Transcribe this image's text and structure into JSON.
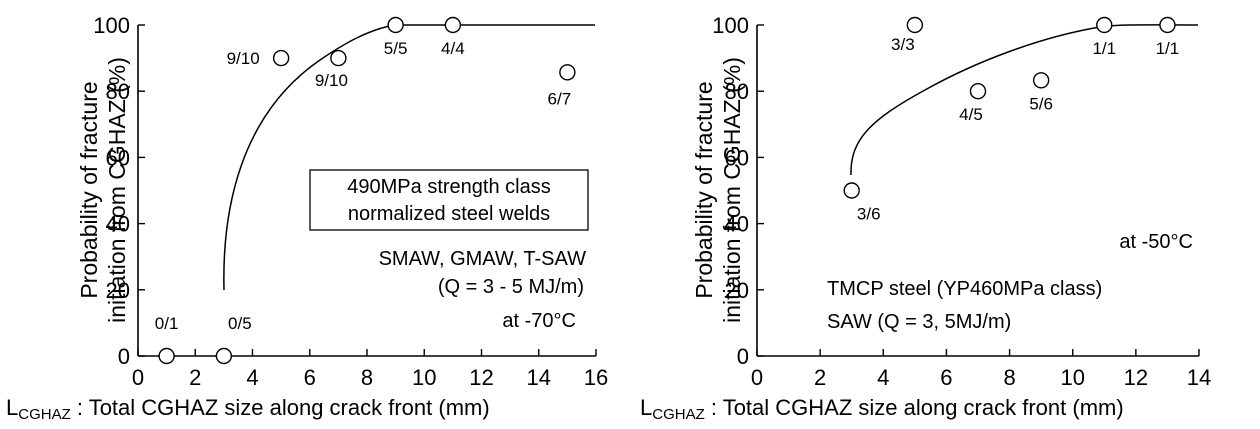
{
  "chart_data": [
    {
      "type": "scatter",
      "xlabel_main": "L",
      "xlabel_sub": "CGHAZ",
      "xlabel_rest": " : Total CGHAZ size along crack front  (mm)",
      "ylabel_line1": "Probability of fracture",
      "ylabel_line2": "initiation from CGHAZ  (%)",
      "xlim": [
        0,
        16
      ],
      "ylim": [
        0,
        100
      ],
      "xticks": [
        "0",
        "2",
        "4",
        "6",
        "8",
        "10",
        "12",
        "14",
        "16"
      ],
      "yticks": [
        "0",
        "20",
        "40",
        "60",
        "80",
        "100"
      ],
      "points": [
        {
          "x": 1,
          "y": 0,
          "label": "0/1"
        },
        {
          "x": 3,
          "y": 0,
          "label": "0/5"
        },
        {
          "x": 5,
          "y": 90,
          "label": "9/10"
        },
        {
          "x": 7,
          "y": 90,
          "label": "9/10"
        },
        {
          "x": 9,
          "y": 100,
          "label": "5/5"
        },
        {
          "x": 11,
          "y": 100,
          "label": "4/4"
        },
        {
          "x": 15,
          "y": 85.7,
          "label": "6/7"
        }
      ],
      "boxed_note": [
        "490MPa strength class",
        "normalized steel welds"
      ],
      "notes": [
        "SMAW, GMAW, T-SAW",
        "(Q = 3 - 5 MJ/m)",
        "at -70°C"
      ]
    },
    {
      "type": "scatter",
      "xlabel_main": "L",
      "xlabel_sub": "CGHAZ",
      "xlabel_rest": " : Total CGHAZ size along crack front  (mm)",
      "ylabel_line1": "Probability of fracture",
      "ylabel_line2": "initiation from CGHAZ  (%)",
      "xlim": [
        0,
        14
      ],
      "ylim": [
        0,
        100
      ],
      "xticks": [
        "0",
        "2",
        "4",
        "6",
        "8",
        "10",
        "12",
        "14"
      ],
      "yticks": [
        "0",
        "20",
        "40",
        "60",
        "80",
        "100"
      ],
      "points": [
        {
          "x": 3,
          "y": 50,
          "label": "3/6"
        },
        {
          "x": 5,
          "y": 100,
          "label": "3/3"
        },
        {
          "x": 7,
          "y": 80,
          "label": "4/5"
        },
        {
          "x": 9,
          "y": 83.3,
          "label": "5/6"
        },
        {
          "x": 11,
          "y": 100,
          "label": "1/1"
        },
        {
          "x": 13,
          "y": 100,
          "label": "1/1"
        }
      ],
      "notes": [
        "at -50°C",
        "TMCP steel (YP460MPa class)",
        "SAW (Q = 3, 5MJ/m)"
      ]
    }
  ]
}
